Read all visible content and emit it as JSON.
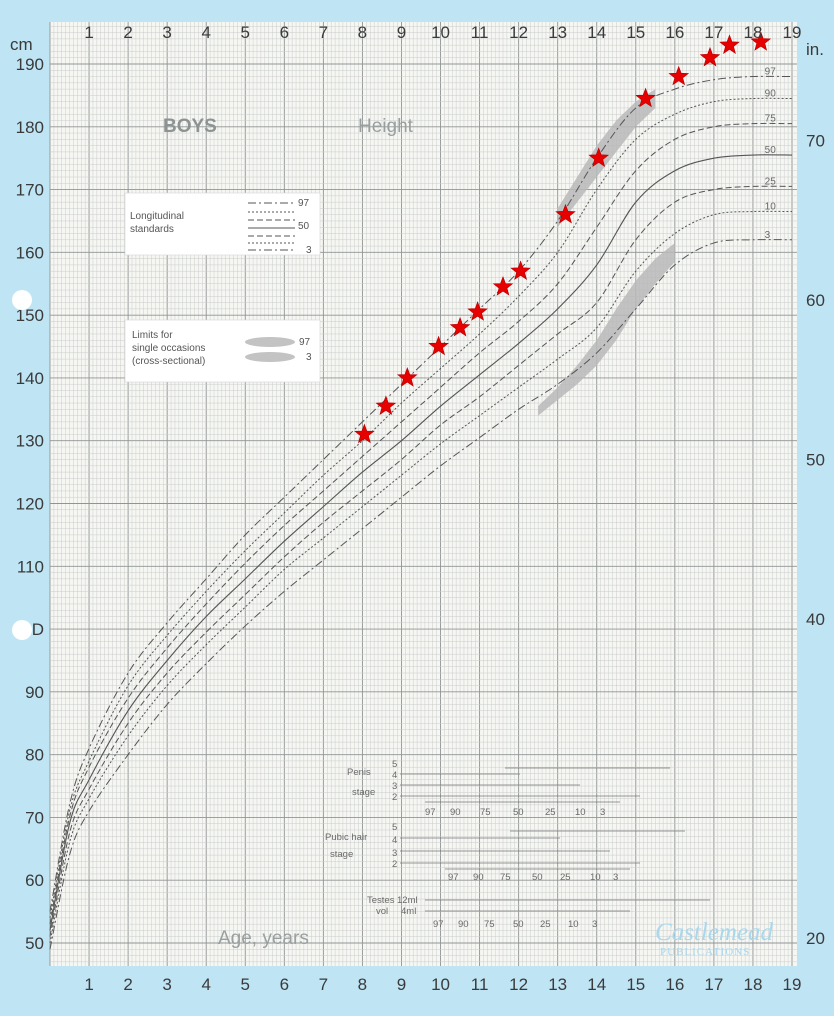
{
  "chart": {
    "title_left": "BOYS",
    "title_right": "Height",
    "y_unit_left": "cm",
    "y_unit_right": "in.",
    "x_title": "Age, years",
    "legend_longitudinal": [
      "Longitudinal",
      "standards"
    ],
    "legend_longitudinal_values": [
      "97",
      "50",
      "3"
    ],
    "legend_cross": [
      "Limits for",
      "single occasions",
      "(cross-sectional)"
    ],
    "legend_cross_values": [
      "97",
      "3"
    ],
    "penis_label": [
      "Penis",
      "stage"
    ],
    "pubic_label": [
      "Pubic hair",
      "stage"
    ],
    "testes_label": [
      "Testes",
      "vol"
    ],
    "testes_values": [
      "12ml",
      "4ml"
    ],
    "stage_numbers": [
      "5",
      "4",
      "3",
      "2"
    ],
    "stage_percentiles": [
      "97",
      "90",
      "75",
      "50",
      "25",
      "10",
      "3"
    ],
    "publisher": "Castlemead",
    "publisher_sub": "PUBLICATIONS"
  },
  "chart_data": {
    "type": "line",
    "xlabel": "Age, years",
    "ylabel": "cm",
    "ylabel_right": "in.",
    "xlim": [
      0,
      19
    ],
    "ylim": [
      45,
      195
    ],
    "x_ticks": [
      "1",
      "2",
      "3",
      "4",
      "5",
      "6",
      "7",
      "8",
      "9",
      "10",
      "11",
      "12",
      "13",
      "14",
      "15",
      "16",
      "17",
      "18",
      "19"
    ],
    "y_ticks_left": [
      "50",
      "60",
      "70",
      "80",
      "90",
      "D",
      "110",
      "120",
      "130",
      "140",
      "150",
      "160",
      "170",
      "180",
      "190"
    ],
    "y_ticks_right": [
      "20",
      "40",
      "50",
      "60",
      "70"
    ],
    "percentile_labels": [
      "97",
      "90",
      "75",
      "50",
      "25",
      "10",
      "3"
    ],
    "series": [
      {
        "name": "97",
        "x": [
          0,
          0.5,
          1,
          2,
          3,
          4,
          5,
          6,
          7,
          8,
          9,
          10,
          11,
          12,
          13,
          14,
          15,
          16,
          17,
          18,
          19
        ],
        "y": [
          55,
          72,
          81,
          93,
          101,
          108,
          115,
          121,
          127,
          133,
          139,
          145,
          151,
          157,
          165,
          175,
          183,
          186,
          187.5,
          188,
          188
        ]
      },
      {
        "name": "90",
        "x": [
          0,
          0.5,
          1,
          2,
          3,
          4,
          5,
          6,
          7,
          8,
          9,
          10,
          11,
          12,
          13,
          14,
          15,
          16,
          17,
          18,
          19
        ],
        "y": [
          54,
          71,
          79,
          91,
          99,
          106,
          112.5,
          118.5,
          124.5,
          130,
          136,
          141.5,
          147,
          153,
          160,
          170,
          178,
          182,
          184,
          184.5,
          184.5
        ]
      },
      {
        "name": "75",
        "x": [
          0,
          0.5,
          1,
          2,
          3,
          4,
          5,
          6,
          7,
          8,
          9,
          10,
          11,
          12,
          13,
          14,
          15,
          16,
          17,
          18,
          19
        ],
        "y": [
          53,
          70,
          78,
          89,
          97,
          104,
          110.5,
          116.5,
          122,
          127.5,
          133,
          138.5,
          144,
          149,
          155,
          164,
          173,
          178,
          180,
          180.5,
          180.5
        ]
      },
      {
        "name": "50",
        "x": [
          0,
          0.5,
          1,
          2,
          3,
          4,
          5,
          6,
          7,
          8,
          9,
          10,
          11,
          12,
          13,
          14,
          15,
          16,
          17,
          18,
          19
        ],
        "y": [
          52,
          69,
          76,
          87,
          95,
          102,
          108,
          114,
          119.5,
          125,
          130,
          135.5,
          140.5,
          145.5,
          151,
          158,
          168,
          173,
          175,
          175.5,
          175.5
        ]
      },
      {
        "name": "25",
        "x": [
          0,
          0.5,
          1,
          2,
          3,
          4,
          5,
          6,
          7,
          8,
          9,
          10,
          11,
          12,
          13,
          14,
          15,
          16,
          17,
          18,
          19
        ],
        "y": [
          51,
          67.5,
          74.5,
          85,
          93,
          99.5,
          105.5,
          111.5,
          117,
          122,
          127,
          132.5,
          137,
          142,
          147,
          152,
          162,
          168,
          170,
          170.5,
          170.5
        ]
      },
      {
        "name": "10",
        "x": [
          0,
          0.5,
          1,
          2,
          3,
          4,
          5,
          6,
          7,
          8,
          9,
          10,
          11,
          12,
          13,
          14,
          15,
          16,
          17,
          18,
          19
        ],
        "y": [
          50,
          66,
          73,
          83,
          91,
          97.5,
          103.5,
          109.5,
          114.5,
          119.5,
          124.5,
          129.5,
          134,
          138.5,
          143,
          148,
          157,
          163,
          166,
          166.5,
          166.5
        ]
      },
      {
        "name": "3",
        "x": [
          0,
          0.5,
          1,
          2,
          3,
          4,
          5,
          6,
          7,
          8,
          9,
          10,
          11,
          12,
          13,
          14,
          15,
          16,
          17,
          18,
          19
        ],
        "y": [
          49,
          64,
          71,
          80,
          88,
          94.5,
          100.5,
          106,
          111,
          116,
          121,
          126,
          130.5,
          135,
          139,
          144,
          151,
          158,
          161.5,
          162,
          162
        ]
      }
    ],
    "bands": [
      {
        "name": "97",
        "x": [
          13,
          13.5,
          14,
          14.5,
          15,
          15.5
        ],
        "lower": [
          164,
          168,
          172,
          176,
          180,
          183
        ],
        "upper": [
          167,
          172,
          177,
          181,
          184,
          186
        ]
      },
      {
        "name": "3",
        "x": [
          12.5,
          13,
          13.5,
          14,
          14.5,
          15,
          15.5,
          16
        ],
        "lower": [
          134,
          136.5,
          139,
          142,
          146,
          151,
          155,
          158.5
        ],
        "upper": [
          135.5,
          138.5,
          142,
          146,
          151,
          155.5,
          159,
          161.5
        ]
      }
    ],
    "markers": [
      {
        "x": 8.05,
        "y": 131
      },
      {
        "x": 8.6,
        "y": 135.5
      },
      {
        "x": 9.15,
        "y": 140
      },
      {
        "x": 9.95,
        "y": 145
      },
      {
        "x": 10.5,
        "y": 148
      },
      {
        "x": 10.95,
        "y": 150.5
      },
      {
        "x": 11.6,
        "y": 154.5
      },
      {
        "x": 12.05,
        "y": 157
      },
      {
        "x": 13.2,
        "y": 166
      },
      {
        "x": 14.05,
        "y": 175
      },
      {
        "x": 15.25,
        "y": 184.5
      },
      {
        "x": 16.1,
        "y": 188
      },
      {
        "x": 16.9,
        "y": 191
      },
      {
        "x": 17.4,
        "y": 193
      },
      {
        "x": 18.2,
        "y": 193.5
      }
    ]
  }
}
